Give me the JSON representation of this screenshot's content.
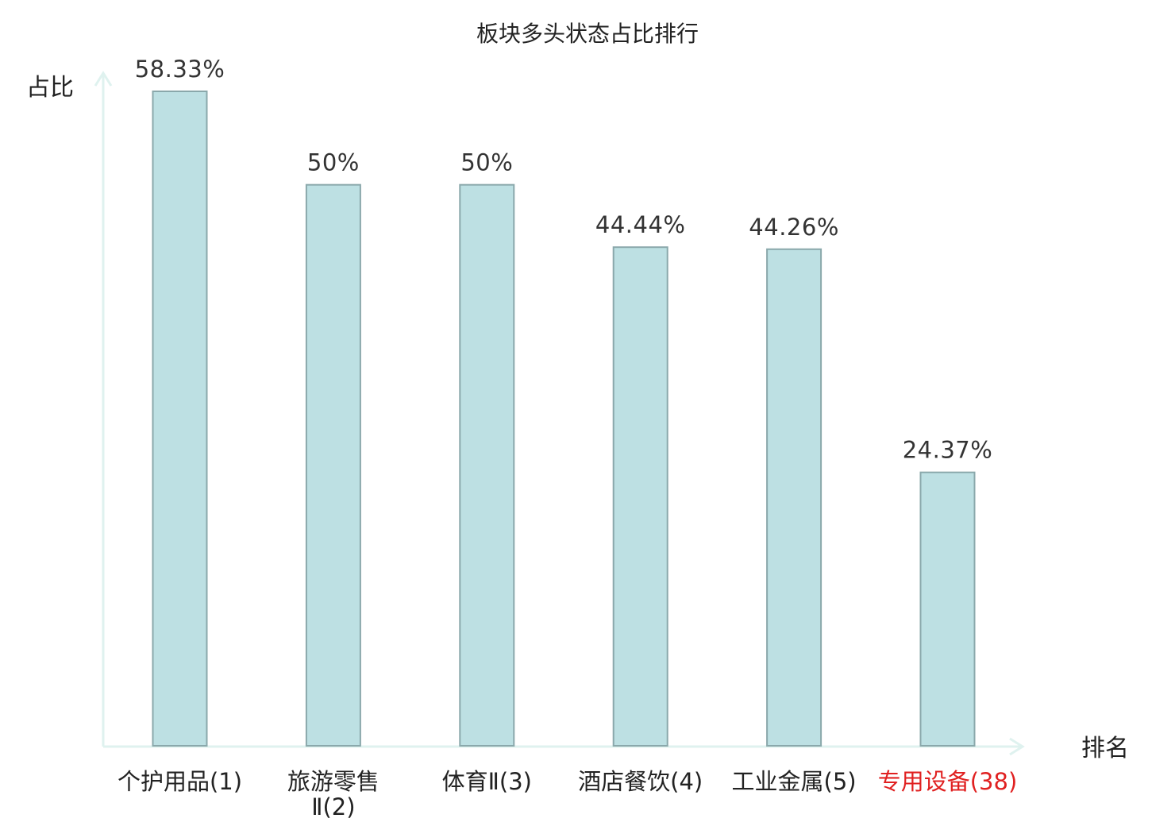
{
  "chart_data": {
    "type": "bar",
    "title": "板块多头状态占比排行",
    "ylabel": "占比",
    "xlabel": "排名",
    "categories": [
      {
        "name": "个护用品",
        "rank": "(1)",
        "highlight": false
      },
      {
        "name": "旅游零售",
        "name2": "Ⅱ(2)",
        "rank": "",
        "highlight": false
      },
      {
        "name": "体育Ⅱ",
        "rank": "(3)",
        "highlight": false
      },
      {
        "name": "酒店餐饮",
        "rank": "(4)",
        "highlight": false
      },
      {
        "name": "工业金属",
        "rank": "(5)",
        "highlight": false
      },
      {
        "name": "专用设备",
        "rank": "(38)",
        "highlight": true
      }
    ],
    "values": [
      58.33,
      50,
      50,
      44.44,
      44.26,
      24.37
    ],
    "value_labels": [
      "58.33%",
      "50%",
      "50%",
      "44.44%",
      "44.26%",
      "24.37%"
    ],
    "ylim": [
      0,
      60
    ],
    "grid": false,
    "colors": {
      "bar_fill": "#bde0e3",
      "bar_stroke": "#8aa8ab",
      "axis": "#dff2ef",
      "highlight": "#e02020"
    }
  }
}
